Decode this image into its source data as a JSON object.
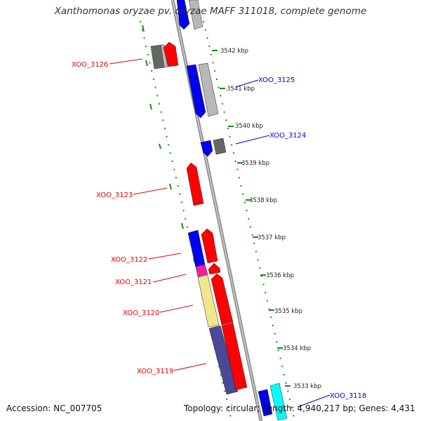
{
  "title": "Xanthomonas oryzae pv. oryzae MAFF 311018, complete genome",
  "footer": {
    "accession": "Accession: NC_007705",
    "summary": "Topology: circular; Length: 4,940,217 bp; Genes: 4,431"
  },
  "ticks": [
    "3542 kbp",
    "3541 kbp",
    "3540 kbp",
    "3539 kbp",
    "3538 kbp",
    "3537 kbp",
    "3536 kbp",
    "3535 kbp",
    "3534 kbp",
    "3533 kbp"
  ],
  "genes": [
    {
      "name": "XOO_3126",
      "color": "#e00000"
    },
    {
      "name": "XOO_3125",
      "color": "#0000cc"
    },
    {
      "name": "XOO_3124",
      "color": "#0000cc"
    },
    {
      "name": "XOO_3123",
      "color": "#e00000"
    },
    {
      "name": "XOO_3122",
      "color": "#e00000"
    },
    {
      "name": "XOO_3121",
      "color": "#e00000"
    },
    {
      "name": "XOO_3120",
      "color": "#e00000"
    },
    {
      "name": "XOO_3119",
      "color": "#e00000"
    },
    {
      "name": "XOO_3118",
      "color": "#0000cc"
    }
  ],
  "colors": {
    "backbone": "#909090",
    "tick_ring": "#1a8a1a",
    "red": "#ff0000",
    "blue": "#0000ee",
    "gray": "#b8b8b8",
    "dark_gray": "#666666",
    "magenta": "#ff1aa0",
    "khaki": "#f0e68c",
    "navy": "#4b4898",
    "cyan": "#00ffff"
  }
}
